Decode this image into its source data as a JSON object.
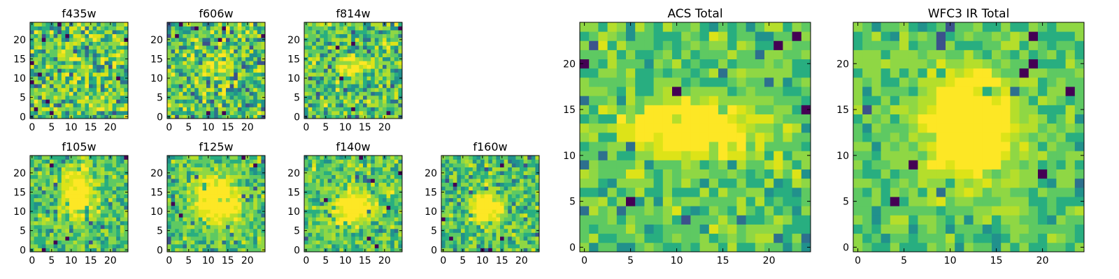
{
  "chart_data": [
    {
      "type": "heatmap",
      "title": "f435w",
      "grid_size": 25,
      "xlim": [
        -0.5,
        24.5
      ],
      "ylim": [
        -0.5,
        24.5
      ],
      "xticks": [
        0,
        5,
        10,
        15,
        20
      ],
      "yticks": [
        0,
        5,
        10,
        15,
        20
      ],
      "colormap": "viridis",
      "origin": "lower",
      "grid": false,
      "pixel_values": "noise-dominated 25×25 cutout, no visible central source"
    },
    {
      "type": "heatmap",
      "title": "f606w",
      "grid_size": 25,
      "xlim": [
        -0.5,
        24.5
      ],
      "ylim": [
        -0.5,
        24.5
      ],
      "xticks": [
        0,
        5,
        10,
        15,
        20
      ],
      "yticks": [
        0,
        5,
        10,
        15,
        20
      ],
      "colormap": "viridis",
      "origin": "lower",
      "grid": false,
      "pixel_values": "noise-dominated 25×25 cutout, faint central excess"
    },
    {
      "type": "heatmap",
      "title": "f814w",
      "grid_size": 25,
      "xlim": [
        -0.5,
        24.5
      ],
      "ylim": [
        -0.5,
        24.5
      ],
      "xticks": [
        0,
        5,
        10,
        15,
        20
      ],
      "yticks": [
        0,
        5,
        10,
        15,
        20
      ],
      "colormap": "viridis",
      "origin": "lower",
      "grid": false,
      "pixel_values": "25×25 cutout with bright elongated feature near x≈10–14, y≈13–14"
    },
    {
      "type": "heatmap",
      "title": "f105w",
      "grid_size": 25,
      "xlim": [
        -0.5,
        24.5
      ],
      "ylim": [
        -0.5,
        24.5
      ],
      "xticks": [
        0,
        5,
        10,
        15,
        20
      ],
      "yticks": [
        0,
        5,
        10,
        15,
        20
      ],
      "colormap": "viridis",
      "origin": "lower",
      "grid": false,
      "pixel_values": "25×25 cutout with central source near x≈12, y≈14"
    },
    {
      "type": "heatmap",
      "title": "f125w",
      "grid_size": 25,
      "xlim": [
        -0.5,
        24.5
      ],
      "ylim": [
        -0.5,
        24.5
      ],
      "xticks": [
        0,
        5,
        10,
        15,
        20
      ],
      "yticks": [
        0,
        5,
        10,
        15,
        20
      ],
      "colormap": "viridis",
      "origin": "lower",
      "grid": false,
      "pixel_values": "25×25 cutout with broad central source near x≈12, y≈13"
    },
    {
      "type": "heatmap",
      "title": "f140w",
      "grid_size": 25,
      "xlim": [
        -0.5,
        24.5
      ],
      "ylim": [
        -0.5,
        24.5
      ],
      "xticks": [
        0,
        5,
        10,
        15,
        20
      ],
      "yticks": [
        0,
        5,
        10,
        15,
        20
      ],
      "colormap": "viridis",
      "origin": "lower",
      "grid": false,
      "pixel_values": "25×25 cutout with central source near x≈12, y≈11"
    },
    {
      "type": "heatmap",
      "title": "f160w",
      "grid_size": 25,
      "xlim": [
        -0.5,
        24.5
      ],
      "ylim": [
        -0.5,
        24.5
      ],
      "xticks": [
        0,
        5,
        10,
        15,
        20
      ],
      "yticks": [
        0,
        5,
        10,
        15,
        20
      ],
      "colormap": "viridis",
      "origin": "lower",
      "grid": false,
      "pixel_values": "25×25 cutout with compact central source near x≈11, y≈11"
    },
    {
      "type": "heatmap",
      "title": "ACS Total",
      "grid_size": 25,
      "xlim": [
        -0.5,
        24.5
      ],
      "ylim": [
        -0.5,
        24.5
      ],
      "xticks": [
        0,
        5,
        10,
        15,
        20
      ],
      "yticks": [
        0,
        5,
        10,
        15,
        20
      ],
      "colormap": "viridis",
      "origin": "lower",
      "grid": false,
      "pixel_values": "25×25 stacked cutout with bright horizontal band near y≈13, x≈8–15"
    },
    {
      "type": "heatmap",
      "title": "WFC3 IR Total",
      "grid_size": 25,
      "xlim": [
        -0.5,
        24.5
      ],
      "ylim": [
        -0.5,
        24.5
      ],
      "xticks": [
        0,
        5,
        10,
        15,
        20
      ],
      "yticks": [
        0,
        5,
        10,
        15,
        20
      ],
      "colormap": "viridis",
      "origin": "lower",
      "grid": false,
      "pixel_values": "25×25 stacked cutout with bright central source near x≈12, y≈13"
    }
  ]
}
